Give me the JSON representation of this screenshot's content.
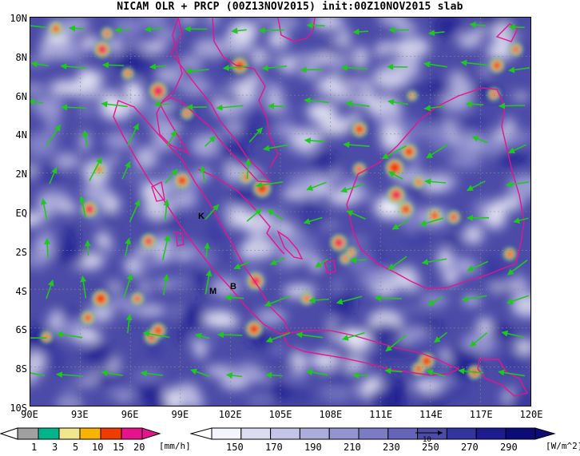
{
  "title": "NICAM OLR + PRCP (00Z13NOV2015) init:00Z10NOV2015 slab",
  "lat_labels": [
    "10N",
    "8N",
    "6N",
    "4N",
    "2N",
    "EQ",
    "2S",
    "4S",
    "6S",
    "8S",
    "10S"
  ],
  "lon_labels": [
    "90E",
    "93E",
    "96E",
    "99E",
    "102E",
    "105E",
    "108E",
    "111E",
    "114E",
    "117E",
    "120E"
  ],
  "map_labels": {
    "k": "K",
    "m": "M",
    "b": "B"
  },
  "prcp_colorbar": {
    "unit": "[mm/h]",
    "ticks": [
      "1",
      "3",
      "5",
      "10",
      "15",
      "20"
    ],
    "colors": [
      "#a0a0a0",
      "#00b48c",
      "#f0e68c",
      "#fab400",
      "#f03c00",
      "#e6148c"
    ]
  },
  "olr_colorbar": {
    "unit": "[W/m^2]",
    "ticks": [
      "150",
      "170",
      "190",
      "210",
      "230",
      "250",
      "270",
      "290"
    ],
    "colors": [
      "#f4f4fb",
      "#dcdcf0",
      "#c4c4e6",
      "#acacdc",
      "#9494d2",
      "#7c7cc6",
      "#6464b8",
      "#4c4ca8",
      "#3434a0",
      "#1c1c90",
      "#0c0c78"
    ]
  },
  "vector_reference": "10",
  "colors": {
    "coastline": "#e6148c",
    "wind_vector": "#1ec81e",
    "background_olr": "#4c4ca8"
  }
}
